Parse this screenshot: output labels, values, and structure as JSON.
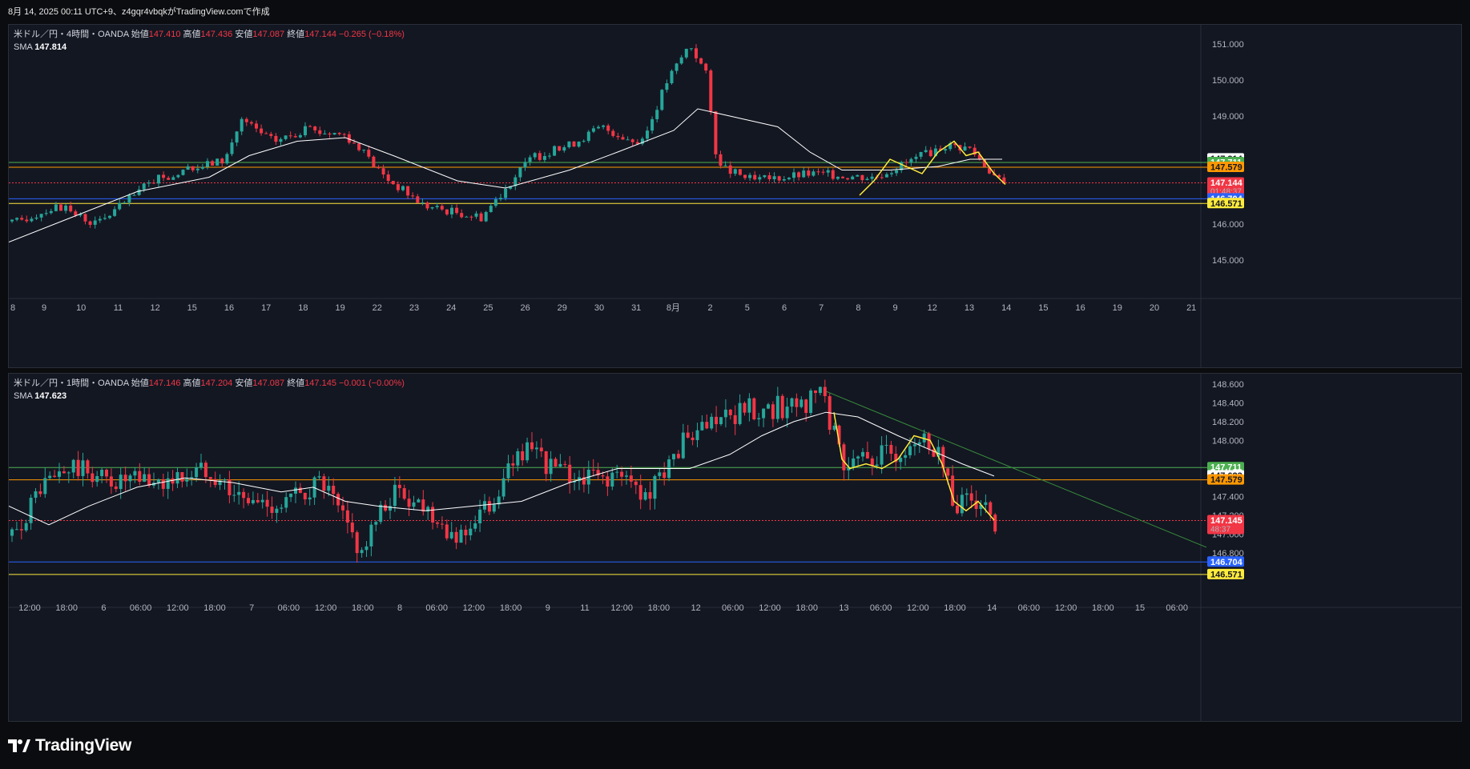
{
  "caption": "8月 14, 2025 00:11 UTC+9、z4gqr4vbqkがTradingView.comで作成",
  "brand": {
    "name": "TradingView"
  },
  "colors": {
    "background": "#131722",
    "up": "#26a69a",
    "down": "#f23645",
    "sma": "#ffffff",
    "green_line": "#4caf50",
    "orange_line": "#ff9800",
    "blue_line": "#2962ff",
    "yellow_line": "#ffeb3b",
    "trend_line": "#388e3c"
  },
  "panes": [
    {
      "id": "top",
      "legend": {
        "symbol": "米ドル／円・4時間・OANDA",
        "open_label": "始値",
        "open": "147.410",
        "high_label": "高値",
        "high": "147.436",
        "low_label": "安値",
        "low": "147.087",
        "close_label": "終値",
        "close": "147.144",
        "change": "−0.265 (−0.18%)",
        "sma_label": "SMA",
        "sma_value": "147.814"
      },
      "price_axis": [
        "151.000",
        "150.000",
        "149.000",
        "146.000",
        "145.000"
      ],
      "time_axis": [
        "9",
        "10",
        "11",
        "12",
        "15",
        "16",
        "17",
        "18",
        "19",
        "22",
        "23",
        "24",
        "25",
        "26",
        "29",
        "30",
        "31",
        "8月",
        "2",
        "5",
        "6",
        "7",
        "8",
        "9",
        "12",
        "13",
        "14",
        "15",
        "16",
        "19",
        "20",
        "21"
      ],
      "time_axis_left_stub": "8",
      "tags": [
        {
          "value": "147.814",
          "bg": "#ffffff",
          "fg": "#131722"
        },
        {
          "value": "147.711",
          "bg": "#4caf50",
          "fg": "#ffffff"
        },
        {
          "value": "147.579",
          "bg": "#ff9800",
          "fg": "#131722"
        },
        {
          "value": "147.144",
          "sub": "01:48:37",
          "bg": "#f23645",
          "fg": "#ffffff"
        },
        {
          "value": "146.704",
          "bg": "#2962ff",
          "fg": "#ffffff"
        },
        {
          "value": "146.571",
          "bg": "#ffeb3b",
          "fg": "#131722"
        }
      ]
    },
    {
      "id": "bottom",
      "legend": {
        "symbol": "米ドル／円・1時間・OANDA",
        "open_label": "始値",
        "open": "147.146",
        "high_label": "高値",
        "high": "147.204",
        "low_label": "安値",
        "low": "147.087",
        "close_label": "終値",
        "close": "147.145",
        "change": "−0.001 (−0.00%)",
        "sma_label": "SMA",
        "sma_value": "147.623"
      },
      "price_axis": [
        "148.600",
        "148.400",
        "148.200",
        "148.000",
        "147.400",
        "147.200",
        "147.000",
        "146.800"
      ],
      "time_axis": [
        "12:00",
        "18:00",
        "6",
        "06:00",
        "12:00",
        "18:00",
        "7",
        "06:00",
        "12:00",
        "18:00",
        "8",
        "06:00",
        "12:00",
        "18:00",
        "9",
        "11",
        "12:00",
        "18:00",
        "12",
        "06:00",
        "12:00",
        "18:00",
        "13",
        "06:00",
        "12:00",
        "18:00",
        "14",
        "06:00",
        "12:00",
        "18:00",
        "15",
        "06:00"
      ],
      "tags": [
        {
          "value": "147.711",
          "bg": "#4caf50",
          "fg": "#ffffff"
        },
        {
          "value": "147.623",
          "bg": "#ffffff",
          "fg": "#131722"
        },
        {
          "value": "147.579",
          "bg": "#ff9800",
          "fg": "#131722"
        },
        {
          "value": "147.145",
          "sub": "48:37",
          "bg": "#f23645",
          "fg": "#ffffff"
        },
        {
          "value": "146.704",
          "bg": "#2962ff",
          "fg": "#ffffff"
        },
        {
          "value": "146.571",
          "bg": "#ffeb3b",
          "fg": "#131722"
        }
      ]
    }
  ]
}
